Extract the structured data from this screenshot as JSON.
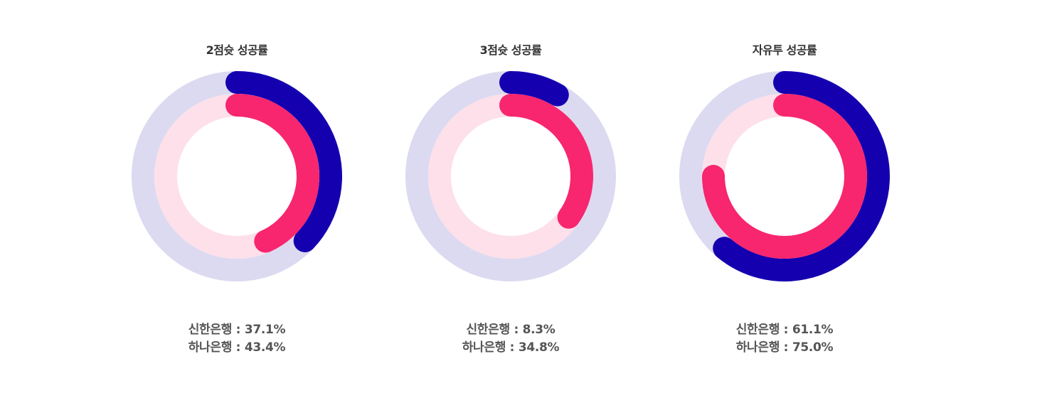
{
  "colors": {
    "shinhan": "#1500b0",
    "shinhan_track": "#dcdaf0",
    "hana": "#f7266e",
    "hana_track": "#fde0ea"
  },
  "separator": " : ",
  "chart_data": [
    {
      "type": "pie",
      "title": "2점슛 성공률",
      "series": [
        {
          "name": "신한은행",
          "value": 37.1,
          "label": "37.1%"
        },
        {
          "name": "하나은행",
          "value": 43.4,
          "label": "43.4%"
        }
      ]
    },
    {
      "type": "pie",
      "title": "3점슛 성공률",
      "series": [
        {
          "name": "신한은행",
          "value": 8.3,
          "label": "8.3%"
        },
        {
          "name": "하나은행",
          "value": 34.8,
          "label": "34.8%"
        }
      ]
    },
    {
      "type": "pie",
      "title": "자유투 성공률",
      "series": [
        {
          "name": "신한은행",
          "value": 61.1,
          "label": "61.1%"
        },
        {
          "name": "하나은행",
          "value": 75.0,
          "label": "75.0%"
        }
      ]
    }
  ]
}
